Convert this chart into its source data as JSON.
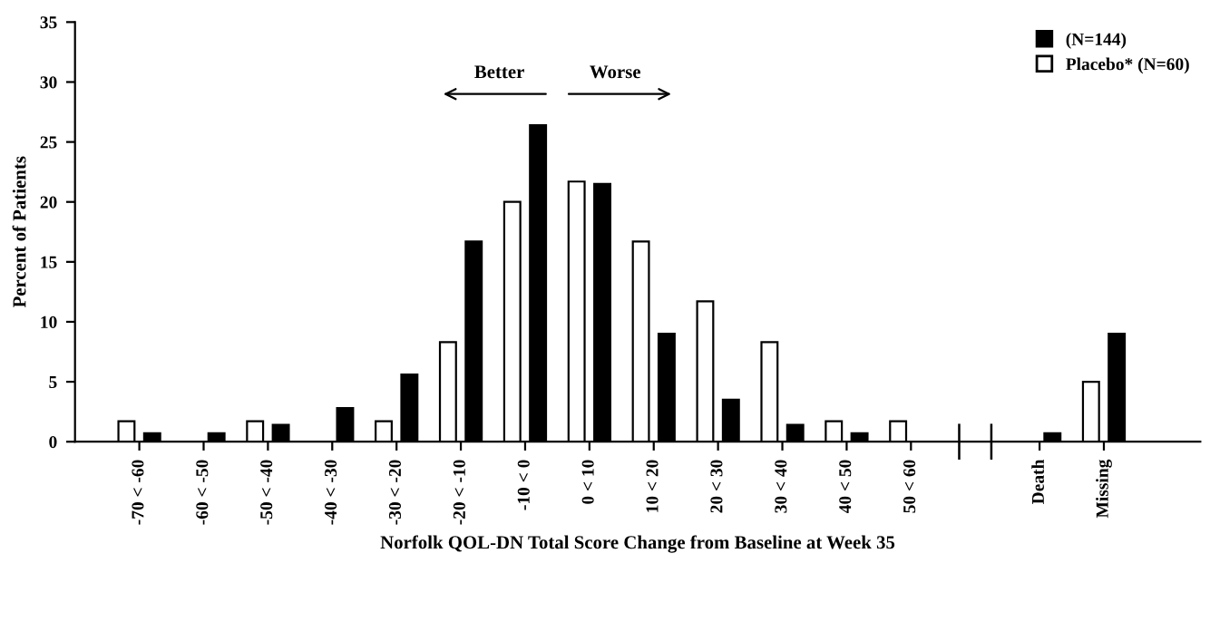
{
  "chart_data": {
    "type": "bar",
    "xlabel": "Norfolk QOL-DN Total Score Change from Baseline at Week 35",
    "ylabel": "Percent of Patients",
    "categories": [
      "-70 < -60",
      "-60 < -50",
      "-50 < -40",
      "-40 < -30",
      "-30 < -20",
      "-20 < -10",
      "-10 < 0",
      "0 < 10",
      "10 < 20",
      "20 < 30",
      "30 < 40",
      "40 < 50",
      "50 < 60",
      null,
      "Death",
      "Missing"
    ],
    "series": [
      {
        "name": "Placebo* (N=60)",
        "color": "#ffffff",
        "values": [
          1.7,
          null,
          1.7,
          null,
          1.7,
          8.3,
          20.0,
          21.7,
          16.7,
          11.7,
          8.3,
          1.7,
          1.7,
          null,
          null,
          5.0
        ]
      },
      {
        "name": "(N=144)",
        "color": "#000000",
        "values": [
          0.7,
          0.7,
          1.4,
          2.8,
          5.6,
          16.7,
          26.4,
          21.5,
          9.0,
          3.5,
          1.4,
          0.7,
          null,
          null,
          0.7,
          9.0
        ]
      }
    ],
    "annotations": [
      "Better",
      "Worse"
    ],
    "ylim": [
      0,
      35
    ],
    "yticks": [
      0,
      5,
      10,
      15,
      20,
      25,
      30,
      35
    ],
    "legend": "top right"
  }
}
